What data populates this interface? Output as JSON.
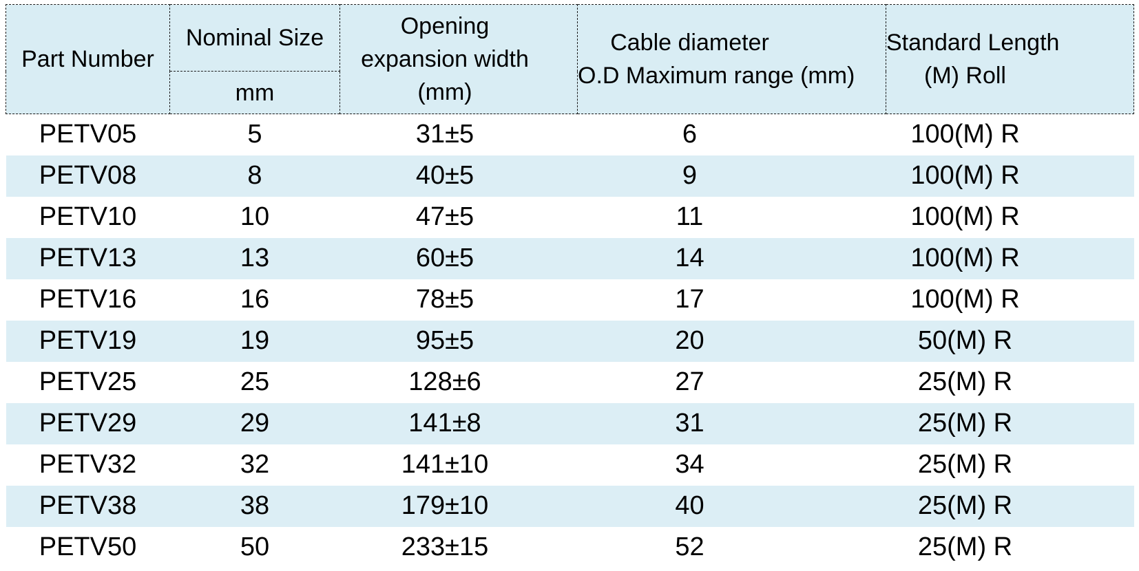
{
  "colors": {
    "page_bg": "#ffffff",
    "header_bg": "#d9edf4",
    "stripe_bg": "#dceef5",
    "border": "#1a1a1a",
    "text": "#000000"
  },
  "table": {
    "headers": {
      "part_number": "Part Number",
      "nominal_size": "Nominal Size",
      "nominal_size_unit": "mm",
      "opening_lines": [
        "Opening",
        "expansion width",
        "(mm)"
      ],
      "cable_lines": [
        "Cable diameter",
        "O.D Maximum range (mm)"
      ],
      "length_lines": [
        "Standard Length",
        "(M) Roll"
      ]
    },
    "rows": [
      [
        "PETV05",
        "5",
        "31±5",
        "6",
        "100(M) R"
      ],
      [
        "PETV08",
        "8",
        "40±5",
        "9",
        "100(M) R"
      ],
      [
        "PETV10",
        "10",
        "47±5",
        "11",
        "100(M) R"
      ],
      [
        "PETV13",
        "13",
        "60±5",
        "14",
        "100(M) R"
      ],
      [
        "PETV16",
        "16",
        "78±5",
        "17",
        "100(M) R"
      ],
      [
        "PETV19",
        "19",
        "95±5",
        "20",
        "50(M) R"
      ],
      [
        "PETV25",
        "25",
        "128±6",
        "27",
        "25(M) R"
      ],
      [
        "PETV29",
        "29",
        "141±8",
        "31",
        "25(M) R"
      ],
      [
        "PETV32",
        "32",
        "141±10",
        "34",
        "25(M) R"
      ],
      [
        "PETV38",
        "38",
        "179±10",
        "40",
        "25(M) R"
      ],
      [
        "PETV50",
        "50",
        "233±15",
        "52",
        "25(M) R"
      ]
    ]
  }
}
